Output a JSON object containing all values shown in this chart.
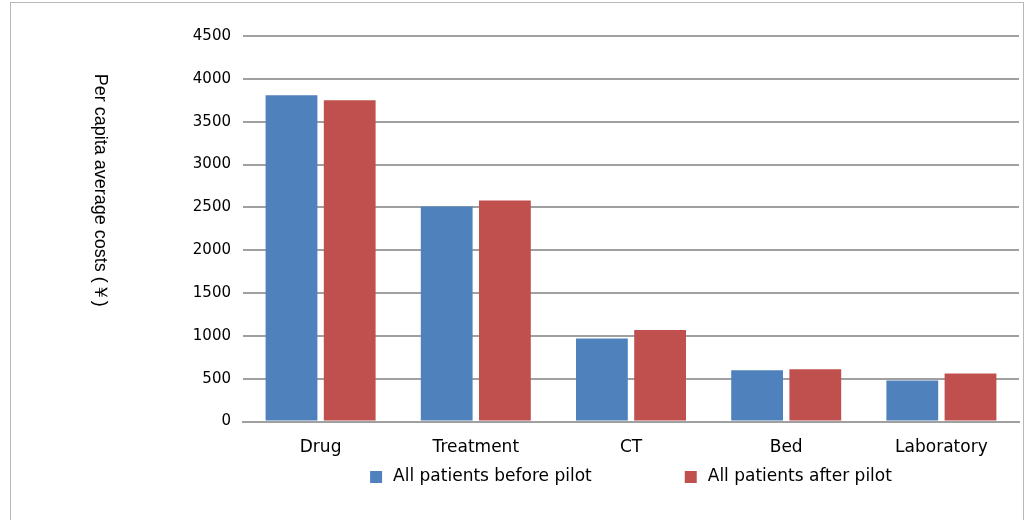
{
  "chart_data": {
    "type": "bar",
    "ylabel": "Per capita average costs (￥)",
    "categories": [
      "Drug",
      "Treatment",
      "CT",
      "Bed",
      "Laboratory"
    ],
    "series": [
      {
        "name": "All patients before pilot",
        "color": "#4f81bd",
        "values": [
          3810,
          2510,
          970,
          600,
          480
        ]
      },
      {
        "name": "All patients after pilot",
        "color": "#c0504d",
        "values": [
          3750,
          2580,
          1070,
          610,
          560
        ]
      }
    ],
    "ylim": [
      0,
      4500
    ],
    "yticks": [
      0,
      500,
      1000,
      1500,
      2000,
      2500,
      3000,
      3500,
      4000,
      4500
    ],
    "grid": "y",
    "legend": "bottom"
  }
}
